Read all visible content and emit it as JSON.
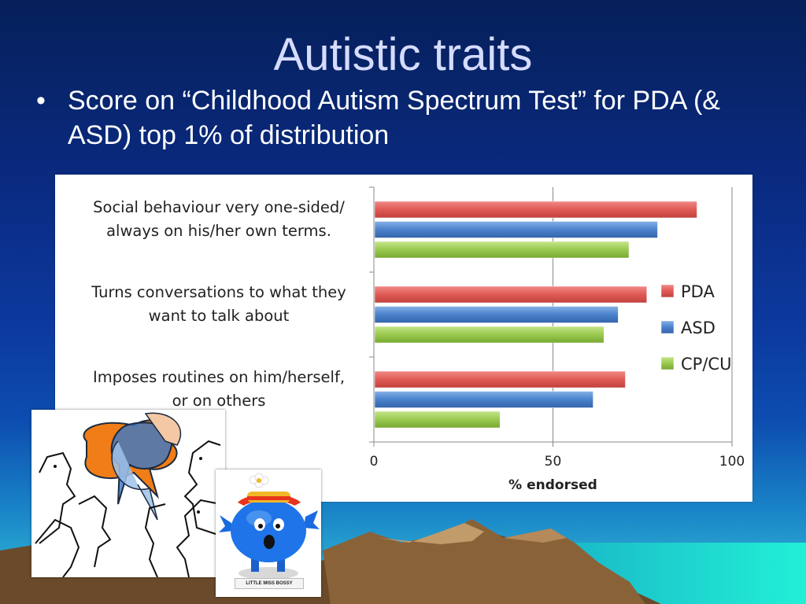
{
  "slide": {
    "title": "Autistic traits",
    "bullet_marker": "•",
    "bullet": "Score on “Childhood Autism Spectrum Test” for PDA (& ASD) top 1% of distribution"
  },
  "chart_data": {
    "type": "bar",
    "orientation": "horizontal",
    "categories": [
      [
        "Social behaviour very one-sided/",
        "always on his/her own terms."
      ],
      [
        "Turns conversations to what they",
        "want to talk about"
      ],
      [
        "Imposes routines on him/herself,",
        "or on others"
      ]
    ],
    "series": [
      {
        "name": "PDA",
        "color": "#e05a55",
        "values": [
          90,
          76,
          70
        ]
      },
      {
        "name": "ASD",
        "color": "#4a82cc",
        "values": [
          79,
          68,
          61
        ]
      },
      {
        "name": "CP/CU",
        "color": "#9ac94e",
        "values": [
          71,
          64,
          35
        ]
      }
    ],
    "xlabel": "% endorsed",
    "ylabel": "",
    "xlim": [
      0,
      100
    ],
    "xticks": [
      0,
      50,
      100
    ],
    "grid": true,
    "legend": "right"
  },
  "images": {
    "left_picture": "speech-bubbles-faces-illustration",
    "right_picture": "little-miss-bossy-figure",
    "right_picture_caption": "LITTLE MISS BOSSY"
  },
  "colors": {
    "title": "#d6dcff",
    "bullet": "#ffffff",
    "background_top": "#06205a",
    "background_bottom": "#39c6d8"
  }
}
